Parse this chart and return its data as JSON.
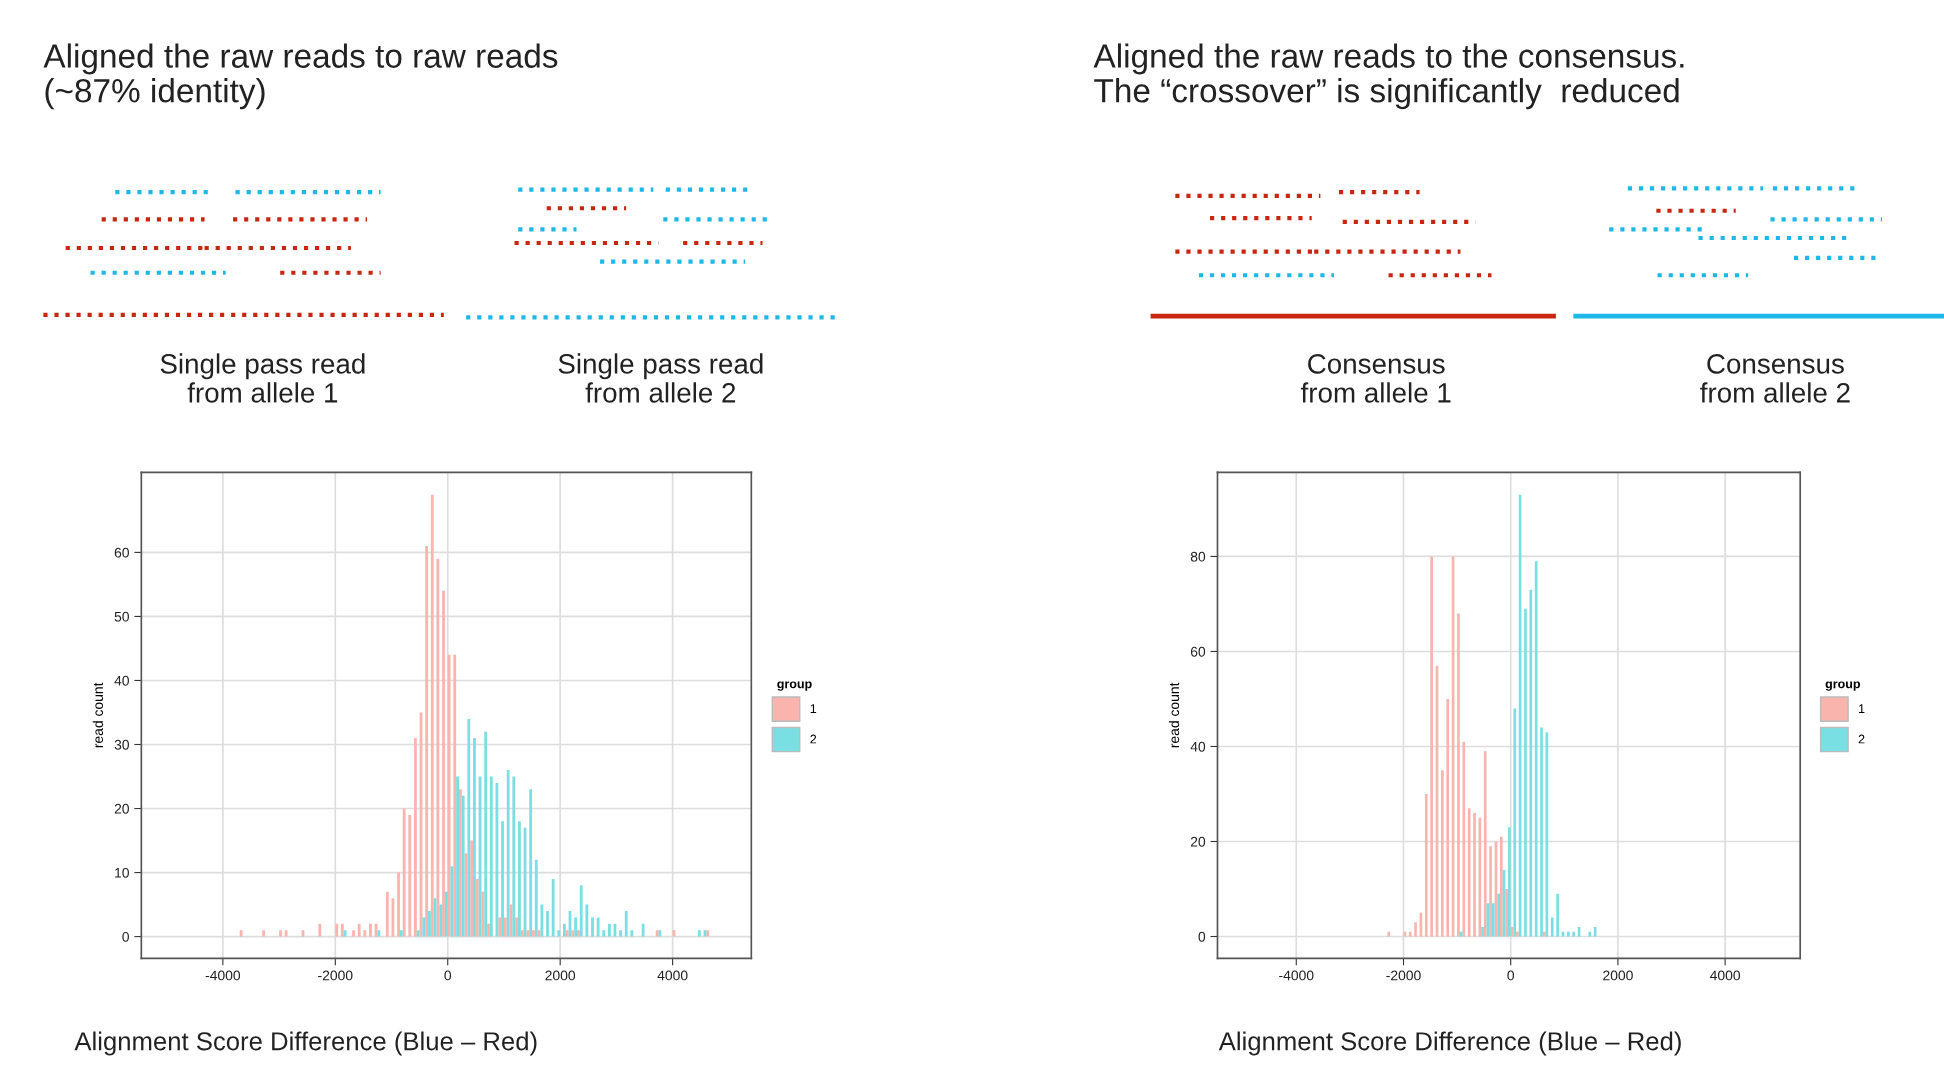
{
  "chart_data": [
    {
      "type": "histogram",
      "title": "Aligned the raw reads to raw reads\n(~87% identity)",
      "xlabel": "Alignment Score Difference (Blue – Red)",
      "ylabel": "read count",
      "legend_title": "group",
      "legend": "right",
      "grid": true,
      "annotations": [
        "Single pass read\nfrom allele 1",
        "Single pass read\nfrom allele 2"
      ],
      "xlim": [
        -5450,
        5400
      ],
      "ylim": [
        -3.4,
        72.5
      ],
      "xticks": [
        -4000,
        -2000,
        0,
        2000,
        4000
      ],
      "yticks": [
        0,
        10,
        20,
        30,
        40,
        50,
        60
      ],
      "bins": [
        -3700,
        -3600,
        -3500,
        -3400,
        -3300,
        -3200,
        -3100,
        -3000,
        -2900,
        -2800,
        -2700,
        -2600,
        -2500,
        -2400,
        -2300,
        -2200,
        -2100,
        -2000,
        -1900,
        -1800,
        -1700,
        -1600,
        -1500,
        -1400,
        -1300,
        -1200,
        -1100,
        -1000,
        -900,
        -800,
        -700,
        -600,
        -500,
        -400,
        -300,
        -200,
        -100,
        0,
        100,
        200,
        300,
        400,
        500,
        600,
        700,
        800,
        900,
        1000,
        1100,
        1200,
        1300,
        1400,
        1500,
        1600,
        1700,
        1800,
        1900,
        2000,
        2100,
        2200,
        2300,
        2400,
        2500,
        2600,
        2700,
        2800,
        2900,
        3000,
        3100,
        3200,
        3300,
        3400,
        3500,
        3600,
        3700,
        3800,
        3900,
        4000,
        4100,
        4200,
        4300,
        4400,
        4500,
        4600,
        4700
      ],
      "series": [
        {
          "name": "1",
          "color": "#f9b4ae",
          "values": [
            1,
            0,
            0,
            0,
            1,
            0,
            0,
            1,
            1,
            0,
            0,
            1,
            0,
            0,
            2,
            0,
            0,
            2,
            2,
            0,
            1,
            2,
            1,
            2,
            2,
            0,
            7,
            6,
            10,
            20,
            19,
            31,
            35,
            61,
            69,
            59,
            54,
            44,
            44,
            23,
            13,
            15,
            9,
            7,
            2,
            0,
            3,
            3,
            5,
            3,
            1,
            1,
            1,
            1,
            0,
            0,
            0,
            0,
            1,
            1,
            1,
            0,
            0,
            0,
            0,
            0,
            0,
            0,
            0,
            0,
            0,
            0,
            0,
            0,
            1,
            0,
            0,
            1,
            0,
            0,
            0,
            0,
            0,
            1
          ]
        },
        {
          "name": "2",
          "color": "#7adfe2",
          "values": [
            0,
            0,
            0,
            0,
            0,
            0,
            0,
            0,
            0,
            0,
            0,
            0,
            0,
            0,
            0,
            0,
            0,
            0,
            1,
            0,
            0,
            0,
            0,
            0,
            1,
            0,
            0,
            0,
            1,
            0,
            0,
            1,
            3,
            4,
            6,
            5,
            7,
            11,
            25,
            22,
            34,
            31,
            25,
            32,
            25,
            24,
            18,
            26,
            25,
            18,
            17,
            23,
            12,
            5,
            4,
            9,
            1,
            2,
            4,
            3,
            8,
            5,
            3,
            3,
            1,
            2,
            2,
            1,
            4,
            1,
            0,
            2,
            0,
            0,
            1,
            0,
            0,
            0,
            0,
            0,
            0,
            1,
            1,
            0
          ]
        }
      ]
    },
    {
      "type": "histogram",
      "title": "Aligned the raw reads to the consensus.\nThe “crossover” is significantly  reduced",
      "xlabel": "Alignment Score Difference (Blue – Red)",
      "ylabel": "read count",
      "legend_title": "group",
      "legend": "right",
      "grid": true,
      "annotations": [
        "Consensus\nfrom allele 1",
        "Consensus\nfrom allele 2"
      ],
      "xlim": [
        -5470,
        5400
      ],
      "ylim": [
        -4.6,
        97.7
      ],
      "xticks": [
        -4000,
        -2000,
        0,
        2000,
        4000
      ],
      "yticks": [
        0,
        20,
        40,
        60,
        80
      ],
      "bins": [
        -2300,
        -2200,
        -2100,
        -2000,
        -1900,
        -1800,
        -1700,
        -1600,
        -1500,
        -1400,
        -1300,
        -1200,
        -1100,
        -1000,
        -900,
        -800,
        -700,
        -600,
        -500,
        -400,
        -300,
        -200,
        -100,
        0,
        100,
        200,
        300,
        400,
        500,
        600,
        700,
        800,
        900,
        1000,
        1100,
        1200,
        1300,
        1400,
        1500,
        1600
      ],
      "series": [
        {
          "name": "1",
          "color": "#f9b4ae",
          "values": [
            1,
            0,
            0,
            1,
            1,
            3,
            5,
            30,
            80,
            57,
            35,
            50,
            80,
            68,
            41,
            27,
            26,
            25,
            39,
            19,
            20,
            21,
            10,
            2,
            1,
            0,
            0,
            0,
            0,
            1,
            0,
            0,
            0,
            0,
            0,
            0,
            0,
            0,
            0
          ]
        },
        {
          "name": "2",
          "color": "#7adfe2",
          "values": [
            0,
            0,
            0,
            0,
            0,
            0,
            0,
            0,
            0,
            0,
            0,
            0,
            0,
            1,
            0,
            0,
            0,
            2,
            7,
            7,
            9,
            14,
            23,
            48,
            93,
            69,
            73,
            79,
            44,
            43,
            4,
            9,
            1,
            1,
            1,
            2,
            0,
            1,
            2
          ]
        }
      ]
    }
  ]
}
